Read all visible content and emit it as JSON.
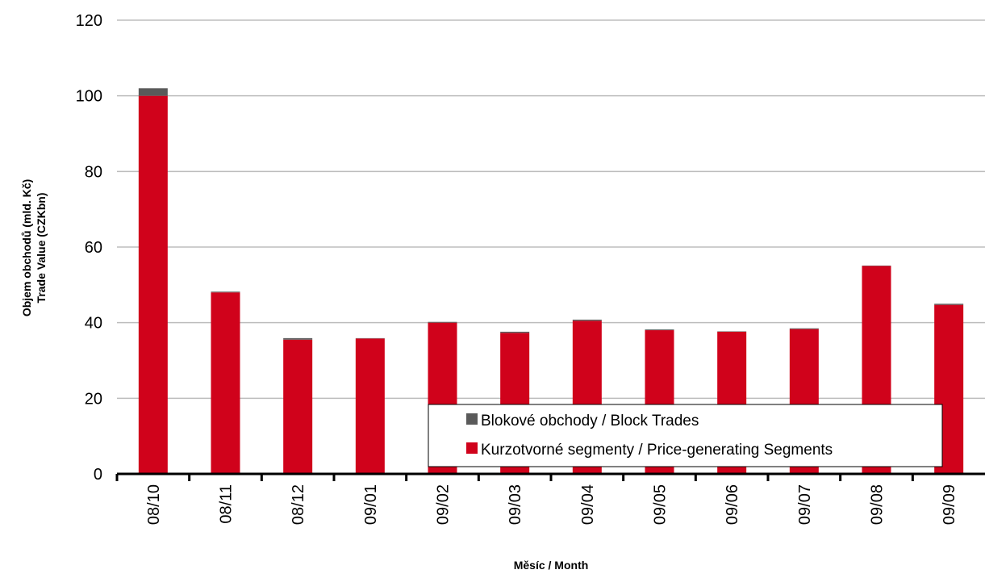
{
  "chart_data": {
    "type": "bar",
    "stacked": true,
    "categories": [
      "08/10",
      "08/11",
      "08/12",
      "09/01",
      "09/02",
      "09/03",
      "09/04",
      "09/05",
      "09/06",
      "09/07",
      "09/08",
      "09/09"
    ],
    "series": [
      {
        "name": "Kurzotvorné segmenty / Price-generating Segments",
        "color": "#d0021b",
        "values": [
          100.0,
          48.0,
          35.5,
          35.8,
          40.0,
          37.3,
          40.5,
          38.0,
          37.6,
          38.3,
          55.0,
          44.7
        ]
      },
      {
        "name": "Blokové obchody / Block Trades",
        "color": "#5a5a5a",
        "values": [
          2.0,
          0.2,
          0.4,
          0.1,
          0.2,
          0.3,
          0.3,
          0.2,
          0.1,
          0.2,
          0.1,
          0.3
        ]
      }
    ],
    "ylim": [
      0,
      120
    ],
    "yticks": [
      "0",
      "20",
      "40",
      "60",
      "80",
      "100",
      "120"
    ],
    "ylabel_line1": "Objem obchodů (mld. Kč)",
    "ylabel_line2": "Trade Value (CZKbn)",
    "xlabel": "Měsíc / Month",
    "grid": true,
    "legend": [
      {
        "label": "Blokové obchody / Block Trades",
        "color": "#5a5a5a"
      },
      {
        "label": "Kurzotvorné segmenty / Price-generating Segments",
        "color": "#d0021b"
      }
    ],
    "legend_position": "bottom-center"
  }
}
